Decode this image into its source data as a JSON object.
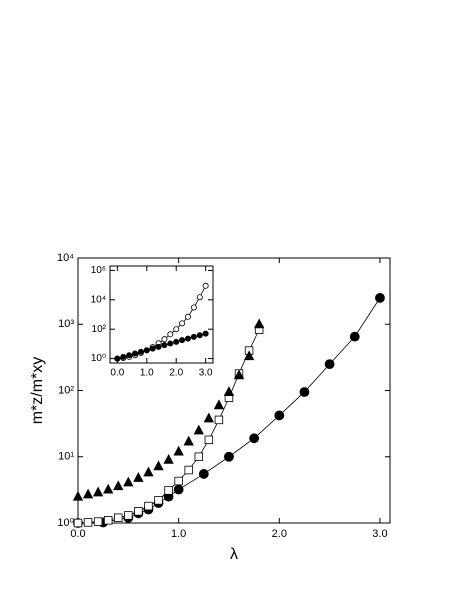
{
  "chart_data": [
    {
      "type": "scatter",
      "x_label": "λ",
      "y_label": "m*z/m*xy",
      "xlim": [
        0,
        3.1
      ],
      "ylim": [
        1,
        10000
      ],
      "log_y": true,
      "xticks": [
        {
          "value": 0,
          "label": "0.0"
        },
        {
          "value": 1,
          "label": "1.0"
        },
        {
          "value": 2,
          "label": "2.0"
        },
        {
          "value": 3,
          "label": "3.0"
        }
      ],
      "yticks": [
        {
          "value": 1,
          "label": "10⁰"
        },
        {
          "value": 10,
          "label": "10¹"
        },
        {
          "value": 100,
          "label": "10²"
        },
        {
          "value": 1000,
          "label": "10³"
        },
        {
          "value": 10000,
          "label": "10⁴"
        }
      ],
      "series": [
        {
          "marker": "circle",
          "filled": true,
          "line": true,
          "color": "#000000",
          "x": [
            0.0,
            0.25,
            0.5,
            0.6,
            0.7,
            0.8,
            0.9,
            1.0,
            1.25,
            1.5,
            1.75,
            2.0,
            2.25,
            2.5,
            2.75,
            3.0
          ],
          "values": [
            1,
            1.02,
            1.2,
            1.4,
            1.6,
            2.0,
            2.5,
            3.2,
            5.5,
            10,
            19,
            42,
            95,
            250,
            650,
            2500
          ]
        },
        {
          "marker": "square",
          "filled": false,
          "line": true,
          "color": "#000000",
          "x": [
            0.0,
            0.1,
            0.2,
            0.3,
            0.4,
            0.5,
            0.6,
            0.7,
            0.8,
            0.9,
            1.0,
            1.1,
            1.2,
            1.3,
            1.4,
            1.5,
            1.6,
            1.7,
            1.8
          ],
          "values": [
            1,
            1.02,
            1.05,
            1.1,
            1.2,
            1.3,
            1.5,
            1.8,
            2.2,
            3.1,
            4.3,
            6.3,
            10,
            18,
            36,
            78,
            180,
            400,
            830
          ]
        },
        {
          "marker": "triangle",
          "filled": true,
          "line": false,
          "color": "#000000",
          "x": [
            0.0,
            0.1,
            0.2,
            0.3,
            0.4,
            0.5,
            0.6,
            0.7,
            0.8,
            0.9,
            1.0,
            1.1,
            1.2,
            1.3,
            1.4,
            1.5,
            1.6,
            1.7,
            1.8
          ],
          "values": [
            2.5,
            2.7,
            2.9,
            3.2,
            3.6,
            4.1,
            4.8,
            5.8,
            7.2,
            9,
            12,
            17,
            25,
            38,
            60,
            95,
            170,
            330,
            1000
          ]
        }
      ]
    },
    {
      "type": "scatter",
      "xlim": [
        -0.25,
        3.25
      ],
      "ylim": [
        0.5,
        2000000
      ],
      "log_y": true,
      "xticks": [
        {
          "value": 0,
          "label": "0.0"
        },
        {
          "value": 1,
          "label": "1.0"
        },
        {
          "value": 2,
          "label": "2.0"
        },
        {
          "value": 3,
          "label": "3.0"
        }
      ],
      "yticks": [
        {
          "value": 1,
          "label": "10⁰"
        },
        {
          "value": 100,
          "label": "10²"
        },
        {
          "value": 10000,
          "label": "10⁴"
        },
        {
          "value": 1000000,
          "label": "10⁶"
        }
      ],
      "series": [
        {
          "marker": "circle",
          "filled": false,
          "line": true,
          "color": "#000000",
          "x": [
            0.0,
            0.2,
            0.4,
            0.6,
            0.8,
            1.0,
            1.2,
            1.4,
            1.6,
            1.8,
            2.0,
            2.2,
            2.4,
            2.6,
            2.8,
            3.0
          ],
          "values": [
            1,
            1.1,
            1.3,
            1.7,
            2.4,
            3.6,
            6,
            11,
            21,
            45,
            100,
            250,
            700,
            3000,
            15000,
            90000
          ]
        },
        {
          "marker": "circle",
          "filled": true,
          "line": true,
          "color": "#000000",
          "x": [
            0.0,
            0.2,
            0.4,
            0.6,
            0.8,
            1.0,
            1.2,
            1.4,
            1.6,
            1.8,
            2.0,
            2.2,
            2.4,
            2.6,
            2.8,
            3.0
          ],
          "values": [
            1,
            1.3,
            1.7,
            2.2,
            2.9,
            3.7,
            4.8,
            6.3,
            8.2,
            10.6,
            13.8,
            18,
            23,
            30,
            39,
            50
          ]
        }
      ]
    }
  ]
}
